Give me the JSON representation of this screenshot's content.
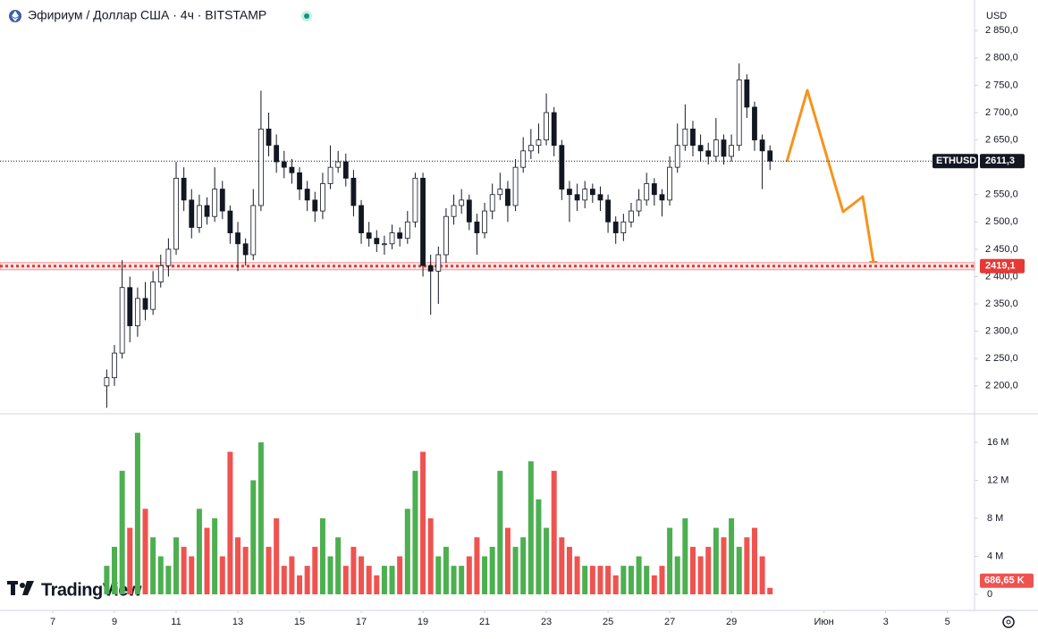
{
  "header": {
    "symbol_title": "Эфириум / Доллар США · 4ч · BITSTAMP",
    "currency": "USD"
  },
  "branding": "TradingView",
  "chart_data": {
    "type": "candlestick",
    "x": [
      8.75,
      9,
      9.25,
      9.5,
      9.75,
      10,
      10.25,
      10.5,
      10.75,
      11,
      11.25,
      11.5,
      11.75,
      12,
      12.25,
      12.5,
      12.75,
      13,
      13.25,
      13.5,
      13.75,
      14,
      14.25,
      14.5,
      14.75,
      15,
      15.25,
      15.5,
      15.75,
      16,
      16.25,
      16.5,
      16.75,
      17,
      17.25,
      17.5,
      17.75,
      18,
      18.25,
      18.5,
      18.75,
      19,
      19.25,
      19.5,
      19.75,
      20,
      20.25,
      20.5,
      20.75,
      21,
      21.25,
      21.5,
      21.75,
      22,
      22.25,
      22.5,
      22.75,
      23,
      23.25,
      23.5,
      23.75,
      24,
      24.25,
      24.5,
      24.75,
      25,
      25.25,
      25.5,
      25.75,
      26,
      26.25,
      26.5,
      26.75,
      27,
      27.25,
      27.5,
      27.75,
      28,
      28.25,
      28.5,
      28.75,
      29,
      29.25,
      29.5,
      29.75,
      30,
      30.25
    ],
    "open": [
      2200,
      2215,
      2260,
      2380,
      2310,
      2360,
      2340,
      2390,
      2420,
      2450,
      2580,
      2540,
      2490,
      2530,
      2510,
      2560,
      2520,
      2480,
      2460,
      2440,
      2530,
      2670,
      2640,
      2610,
      2600,
      2590,
      2560,
      2540,
      2520,
      2570,
      2600,
      2610,
      2580,
      2530,
      2480,
      2470,
      2460,
      2460,
      2480,
      2470,
      2500,
      2580,
      2420,
      2410,
      2440,
      2510,
      2530,
      2540,
      2500,
      2480,
      2520,
      2550,
      2560,
      2530,
      2600,
      2630,
      2640,
      2650,
      2700,
      2640,
      2560,
      2550,
      2540,
      2560,
      2550,
      2540,
      2500,
      2480,
      2500,
      2520,
      2540,
      2570,
      2550,
      2540,
      2600,
      2640,
      2670,
      2640,
      2630,
      2620,
      2650,
      2620,
      2640,
      2760,
      2710,
      2650,
      2630
    ],
    "high": [
      2230,
      2275,
      2430,
      2400,
      2380,
      2390,
      2410,
      2440,
      2470,
      2610,
      2600,
      2560,
      2550,
      2545,
      2600,
      2575,
      2530,
      2500,
      2470,
      2560,
      2740,
      2700,
      2660,
      2630,
      2615,
      2600,
      2575,
      2555,
      2590,
      2640,
      2630,
      2625,
      2595,
      2540,
      2500,
      2485,
      2475,
      2495,
      2490,
      2520,
      2590,
      2590,
      2440,
      2455,
      2525,
      2550,
      2560,
      2550,
      2515,
      2535,
      2570,
      2590,
      2575,
      2615,
      2655,
      2670,
      2680,
      2735,
      2710,
      2650,
      2575,
      2570,
      2575,
      2570,
      2565,
      2550,
      2510,
      2515,
      2535,
      2560,
      2590,
      2580,
      2560,
      2620,
      2680,
      2715,
      2685,
      2660,
      2645,
      2690,
      2660,
      2660,
      2790,
      2770,
      2720,
      2660,
      2640
    ],
    "low": [
      2160,
      2200,
      2250,
      2280,
      2290,
      2320,
      2330,
      2380,
      2400,
      2440,
      2520,
      2470,
      2480,
      2495,
      2500,
      2505,
      2460,
      2410,
      2420,
      2430,
      2520,
      2620,
      2590,
      2580,
      2570,
      2540,
      2520,
      2500,
      2505,
      2560,
      2590,
      2565,
      2510,
      2460,
      2455,
      2445,
      2440,
      2450,
      2455,
      2460,
      2490,
      2400,
      2330,
      2350,
      2425,
      2495,
      2515,
      2485,
      2440,
      2470,
      2505,
      2540,
      2500,
      2520,
      2590,
      2615,
      2625,
      2640,
      2620,
      2540,
      2500,
      2520,
      2525,
      2535,
      2520,
      2480,
      2460,
      2465,
      2490,
      2510,
      2530,
      2530,
      2510,
      2530,
      2590,
      2630,
      2620,
      2610,
      2605,
      2610,
      2605,
      2610,
      2630,
      2690,
      2630,
      2560,
      2595
    ],
    "close": [
      2215,
      2260,
      2380,
      2310,
      2360,
      2340,
      2390,
      2420,
      2450,
      2580,
      2540,
      2490,
      2530,
      2510,
      2560,
      2520,
      2480,
      2460,
      2440,
      2530,
      2670,
      2640,
      2610,
      2600,
      2590,
      2560,
      2540,
      2520,
      2570,
      2600,
      2610,
      2580,
      2530,
      2480,
      2470,
      2460,
      2460,
      2480,
      2470,
      2500,
      2580,
      2420,
      2410,
      2440,
      2510,
      2530,
      2540,
      2500,
      2480,
      2520,
      2550,
      2560,
      2530,
      2600,
      2630,
      2640,
      2650,
      2700,
      2640,
      2560,
      2550,
      2540,
      2560,
      2550,
      2540,
      2500,
      2480,
      2500,
      2520,
      2540,
      2570,
      2550,
      2540,
      2600,
      2640,
      2670,
      2640,
      2630,
      2620,
      2650,
      2620,
      2640,
      2760,
      2710,
      2650,
      2630,
      2611.3
    ],
    "colors": {
      "candle_up": "#ffffff",
      "candle_down": "#131722",
      "candle_border": "#131722",
      "volume_up": "#4caf50",
      "volume_down": "#ef5350"
    },
    "xlim": [
      5.29,
      36.88
    ],
    "xticks": [
      7,
      9,
      11,
      13,
      15,
      17,
      19,
      21,
      23,
      25,
      27,
      29,
      {
        "value": 32,
        "label": "Июн"
      },
      {
        "value": 34,
        "label": "3"
      },
      {
        "value": 36,
        "label": "5"
      }
    ],
    "ylim": [
      2149,
      2906
    ],
    "yticks": [
      {
        "value": 2200,
        "label": "2 200,0"
      },
      {
        "value": 2250,
        "label": "2 250,0"
      },
      {
        "value": 2300,
        "label": "2 300,0"
      },
      {
        "value": 2350,
        "label": "2 350,0"
      },
      {
        "value": 2400,
        "label": "2 400,0"
      },
      {
        "value": 2450,
        "label": "2 450,0"
      },
      {
        "value": 2500,
        "label": "2 500,0"
      },
      {
        "value": 2550,
        "label": "2 550,0"
      },
      {
        "value": 2650,
        "label": "2 650,0"
      },
      {
        "value": 2700,
        "label": "2 700,0"
      },
      {
        "value": 2750,
        "label": "2 750,0"
      },
      {
        "value": 2800,
        "label": "2 800,0"
      },
      {
        "value": 2850,
        "label": "2 850,0"
      }
    ],
    "last_price": {
      "symbol": "ETHUSD",
      "value": 2611.3,
      "label": "2611,3"
    },
    "level": {
      "value": 2419.1,
      "label": "2419,1",
      "color": "#e53935"
    },
    "volume": {
      "values": [
        3,
        5,
        13,
        7,
        17,
        9,
        6,
        4,
        3,
        6,
        5,
        4,
        9,
        7,
        8,
        4,
        15,
        6,
        5,
        12,
        16,
        5,
        8,
        3,
        4,
        2,
        3,
        5,
        8,
        4,
        6,
        3,
        5,
        4,
        3,
        2,
        3,
        3,
        4,
        9,
        13,
        15,
        8,
        4,
        5,
        3,
        3,
        4,
        6,
        4,
        5,
        13,
        7,
        5,
        6,
        14,
        10,
        7,
        13,
        6,
        5,
        4,
        3,
        3,
        3,
        3,
        2,
        3,
        3,
        4,
        3,
        2,
        3,
        7,
        4,
        8,
        5,
        4,
        5,
        7,
        6,
        8,
        5,
        6,
        7,
        4,
        0.68665
      ],
      "ylim": [
        -0.28,
        19
      ],
      "yticks": [
        0,
        {
          "value": 4,
          "label": "4 M"
        },
        {
          "value": 8,
          "label": "8 M"
        },
        {
          "value": 12,
          "label": "12 M"
        },
        {
          "value": 16,
          "label": "16 M"
        }
      ],
      "last": {
        "value": 0.68665,
        "label": "686,65 K"
      }
    }
  }
}
